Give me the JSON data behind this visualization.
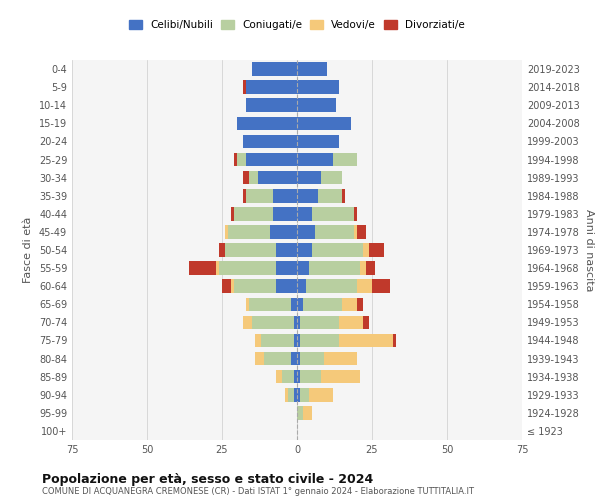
{
  "age_groups": [
    "100+",
    "95-99",
    "90-94",
    "85-89",
    "80-84",
    "75-79",
    "70-74",
    "65-69",
    "60-64",
    "55-59",
    "50-54",
    "45-49",
    "40-44",
    "35-39",
    "30-34",
    "25-29",
    "20-24",
    "15-19",
    "10-14",
    "5-9",
    "0-4"
  ],
  "birth_years": [
    "≤ 1923",
    "1924-1928",
    "1929-1933",
    "1934-1938",
    "1939-1943",
    "1944-1948",
    "1949-1953",
    "1954-1958",
    "1959-1963",
    "1964-1968",
    "1969-1973",
    "1974-1978",
    "1979-1983",
    "1984-1988",
    "1989-1993",
    "1994-1998",
    "1999-2003",
    "2004-2008",
    "2009-2013",
    "2014-2018",
    "2019-2023"
  ],
  "male_celibi": [
    0,
    0,
    1,
    1,
    2,
    1,
    1,
    2,
    7,
    7,
    7,
    9,
    8,
    8,
    13,
    17,
    18,
    20,
    17,
    17,
    15
  ],
  "male_coniugati": [
    0,
    0,
    2,
    4,
    9,
    11,
    14,
    14,
    14,
    19,
    17,
    14,
    13,
    9,
    3,
    3,
    0,
    0,
    0,
    0,
    0
  ],
  "male_vedovi": [
    0,
    0,
    1,
    2,
    3,
    2,
    3,
    1,
    1,
    1,
    0,
    1,
    0,
    0,
    0,
    0,
    0,
    0,
    0,
    0,
    0
  ],
  "male_divorziati": [
    0,
    0,
    0,
    0,
    0,
    0,
    0,
    0,
    3,
    9,
    2,
    0,
    1,
    1,
    2,
    1,
    0,
    0,
    0,
    1,
    0
  ],
  "female_celibi": [
    0,
    0,
    1,
    1,
    1,
    1,
    1,
    2,
    3,
    4,
    5,
    6,
    5,
    7,
    8,
    12,
    14,
    18,
    13,
    14,
    10
  ],
  "female_coniugati": [
    0,
    2,
    3,
    7,
    8,
    13,
    13,
    13,
    17,
    17,
    17,
    13,
    14,
    8,
    7,
    8,
    0,
    0,
    0,
    0,
    0
  ],
  "female_vedovi": [
    0,
    3,
    8,
    13,
    11,
    18,
    8,
    5,
    5,
    2,
    2,
    1,
    0,
    0,
    0,
    0,
    0,
    0,
    0,
    0,
    0
  ],
  "female_divorziati": [
    0,
    0,
    0,
    0,
    0,
    1,
    2,
    2,
    6,
    3,
    5,
    3,
    1,
    1,
    0,
    0,
    0,
    0,
    0,
    0,
    0
  ],
  "color_celibi": "#4472c4",
  "color_coniugati": "#b8cfa0",
  "color_vedovi": "#f5c97a",
  "color_divorziati": "#c0392b",
  "xlim": 75,
  "title": "Popolazione per età, sesso e stato civile - 2024",
  "subtitle": "COMUNE DI ACQUANEGRA CREMONESE (CR) - Dati ISTAT 1° gennaio 2024 - Elaborazione TUTTITALIA.IT",
  "ylabel_left": "Fasce di età",
  "ylabel_right": "Anni di nascita",
  "background_color": "#f5f5f5",
  "grid_color": "#cccccc"
}
